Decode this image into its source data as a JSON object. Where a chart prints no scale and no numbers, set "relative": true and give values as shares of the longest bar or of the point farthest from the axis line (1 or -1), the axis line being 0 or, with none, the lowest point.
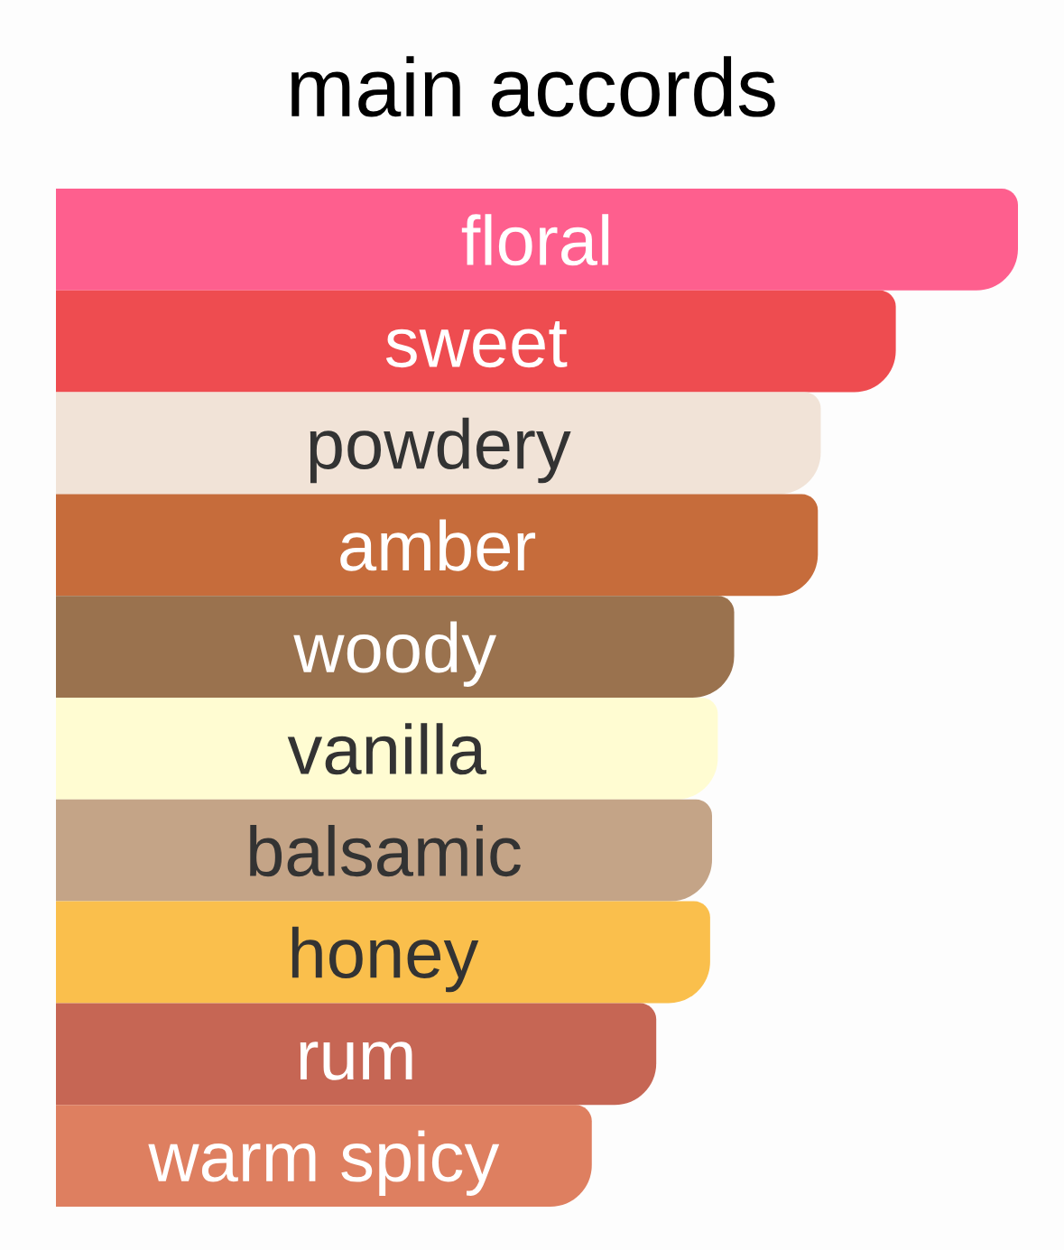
{
  "chart_data": {
    "type": "bar",
    "orientation": "horizontal",
    "relative": true,
    "title": "main accords",
    "categories": [
      "floral",
      "sweet",
      "powdery",
      "amber",
      "woody",
      "vanilla",
      "balsamic",
      "honey",
      "rum",
      "warm spicy"
    ],
    "values": [
      1,
      0.873,
      0.795,
      0.792,
      0.705,
      0.688,
      0.682,
      0.68,
      0.624,
      0.557
    ],
    "colors": [
      "#fe5f8e",
      "#ee4c50",
      "#f1e3d7",
      "#c66c3b",
      "#9a724e",
      "#fffcd2",
      "#c4a487",
      "#fabf4c",
      "#c66654",
      "#de7f60"
    ]
  }
}
